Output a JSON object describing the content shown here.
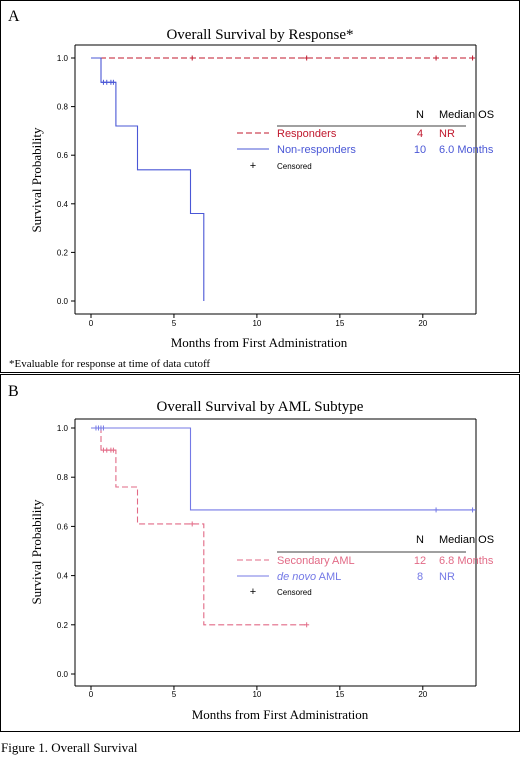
{
  "caption": "Figure 1. Overall Survival",
  "colors": {
    "red": "#c0182d",
    "blue": "#4a57d6",
    "pink": "#e26a86",
    "lavender": "#7479e6",
    "black": "#000000"
  },
  "chart_data": [
    {
      "type": "line",
      "panel": "A",
      "title": "Overall Survival by Response*",
      "xlabel": "Months from First Administration",
      "ylabel": "Survival Probability",
      "xlim": [
        0,
        23.3
      ],
      "ylim": [
        0,
        1.0
      ],
      "xticks": [
        0,
        5,
        10,
        15,
        20
      ],
      "yticks": [
        0.0,
        0.2,
        0.4,
        0.6,
        0.8,
        1.0
      ],
      "ytick_labels": [
        "0.0",
        "0.2",
        "0.4",
        "0.6",
        "0.8",
        "1.0"
      ],
      "footnote": "*Evaluable for response at time of data cutoff",
      "legend": {
        "placement": "right",
        "header_n": "N",
        "header_os": "Median OS",
        "censored_label": "Censored",
        "censor_symbol": "+"
      },
      "series": [
        {
          "name": "Responders",
          "n": "4",
          "median_os": "NR",
          "style": "dashed",
          "color": "#c0182d",
          "steps": [
            [
              0,
              1.0
            ],
            [
              23.2,
              1.0
            ]
          ],
          "censored": [
            [
              6.1,
              1.0
            ],
            [
              13.0,
              1.0
            ],
            [
              20.8,
              1.0
            ],
            [
              23.0,
              1.0
            ]
          ]
        },
        {
          "name": "Non-responders",
          "n": "10",
          "median_os": "6.0 Months",
          "style": "solid",
          "color": "#4a57d6",
          "steps": [
            [
              0,
              1.0
            ],
            [
              0.6,
              1.0
            ],
            [
              0.6,
              0.9
            ],
            [
              1.5,
              0.9
            ],
            [
              1.5,
              0.72
            ],
            [
              2.8,
              0.72
            ],
            [
              2.8,
              0.54
            ],
            [
              6.0,
              0.54
            ],
            [
              6.0,
              0.36
            ],
            [
              6.8,
              0.36
            ],
            [
              6.8,
              0.0
            ]
          ],
          "censored": [
            [
              0.75,
              0.9
            ],
            [
              0.95,
              0.9
            ],
            [
              1.2,
              0.9
            ],
            [
              1.35,
              0.9
            ]
          ]
        }
      ]
    },
    {
      "type": "line",
      "panel": "B",
      "title": "Overall Survival by AML Subtype",
      "xlabel": "Months from First Administration",
      "ylabel": "Survival Probability",
      "xlim": [
        0,
        23.3
      ],
      "ylim": [
        0,
        1.0
      ],
      "xticks": [
        0,
        5,
        10,
        15,
        20
      ],
      "yticks": [
        0.0,
        0.2,
        0.4,
        0.6,
        0.8,
        1.0
      ],
      "ytick_labels": [
        "0.0",
        "0.2",
        "0.4",
        "0.6",
        "0.8",
        "1.0"
      ],
      "legend": {
        "placement": "right",
        "header_n": "N",
        "header_os": "Median OS",
        "censored_label": "Censored",
        "censor_symbol": "+"
      },
      "series": [
        {
          "name": "Secondary AML",
          "n": "12",
          "median_os": "6.8 Months",
          "style": "dashed",
          "color": "#e26a86",
          "steps": [
            [
              0,
              1.0
            ],
            [
              0.6,
              1.0
            ],
            [
              0.6,
              0.91
            ],
            [
              1.5,
              0.91
            ],
            [
              1.5,
              0.76
            ],
            [
              2.8,
              0.76
            ],
            [
              2.8,
              0.61
            ],
            [
              6.8,
              0.61
            ],
            [
              6.8,
              0.2
            ],
            [
              13.1,
              0.2
            ]
          ],
          "censored": [
            [
              0.75,
              0.91
            ],
            [
              0.95,
              0.91
            ],
            [
              1.2,
              0.91
            ],
            [
              1.35,
              0.91
            ],
            [
              6.1,
              0.61
            ],
            [
              13.0,
              0.2
            ]
          ]
        },
        {
          "name": "de novo AML",
          "name_italic": "de novo",
          "name_rest": " AML",
          "n": "8",
          "median_os": "NR",
          "style": "solid",
          "color": "#7479e6",
          "steps": [
            [
              0,
              1.0
            ],
            [
              6.0,
              1.0
            ],
            [
              6.0,
              0.667
            ],
            [
              23.2,
              0.667
            ]
          ],
          "censored": [
            [
              0.3,
              1.0
            ],
            [
              0.45,
              1.0
            ],
            [
              0.6,
              1.0
            ],
            [
              0.75,
              1.0
            ],
            [
              20.8,
              0.667
            ],
            [
              23.0,
              0.667
            ]
          ]
        }
      ]
    }
  ]
}
